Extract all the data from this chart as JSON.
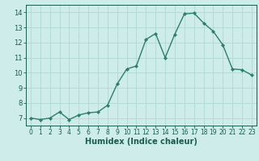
{
  "x": [
    0,
    1,
    2,
    3,
    4,
    5,
    6,
    7,
    8,
    9,
    10,
    11,
    12,
    13,
    14,
    15,
    16,
    17,
    18,
    19,
    20,
    21,
    22,
    23
  ],
  "y": [
    7.0,
    6.9,
    7.0,
    7.4,
    6.9,
    7.2,
    7.35,
    7.4,
    7.85,
    9.25,
    10.25,
    10.45,
    12.2,
    12.6,
    11.0,
    12.55,
    13.9,
    13.95,
    13.3,
    12.75,
    11.85,
    10.25,
    10.2,
    9.85
  ],
  "line_color": "#2e7d6e",
  "marker": "D",
  "marker_size": 2.2,
  "bg_color": "#ceecea",
  "grid_color": "#b0d8d4",
  "tick_color": "#1a5c52",
  "xlabel": "Humidex (Indice chaleur)",
  "xlabel_fontsize": 7,
  "xlim": [
    -0.5,
    23.5
  ],
  "ylim": [
    6.5,
    14.5
  ],
  "yticks": [
    7,
    8,
    9,
    10,
    11,
    12,
    13,
    14
  ],
  "xticks": [
    0,
    1,
    2,
    3,
    4,
    5,
    6,
    7,
    8,
    9,
    10,
    11,
    12,
    13,
    14,
    15,
    16,
    17,
    18,
    19,
    20,
    21,
    22,
    23
  ]
}
